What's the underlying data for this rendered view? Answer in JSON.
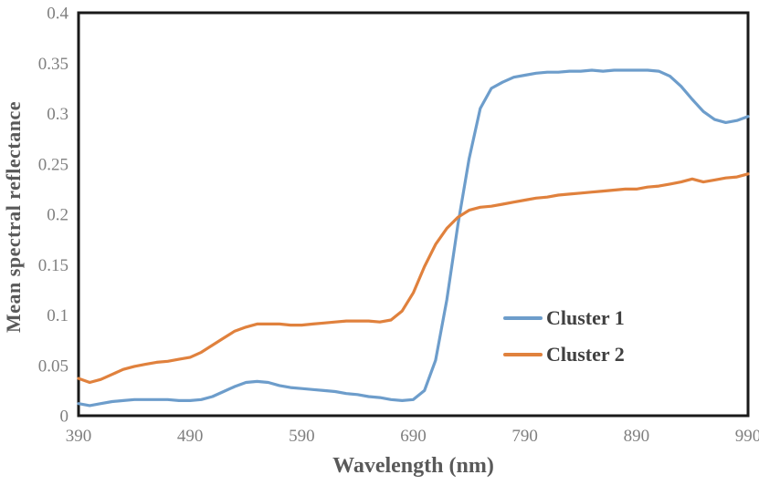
{
  "chart_data": {
    "type": "line",
    "title": "",
    "xlabel": "Wavelength (nm)",
    "ylabel": "Mean spectral reflectance",
    "xlim": [
      390,
      990
    ],
    "ylim": [
      0,
      0.4
    ],
    "grid": "off",
    "legend_position": "center-right-inside",
    "x_ticks": [
      390,
      490,
      590,
      690,
      790,
      890,
      990
    ],
    "y_ticks": [
      {
        "value": 0,
        "label": "0"
      },
      {
        "value": 0.05,
        "label": "0.05"
      },
      {
        "value": 0.1,
        "label": "0.1"
      },
      {
        "value": 0.15,
        "label": "0.15"
      },
      {
        "value": 0.2,
        "label": "0.2"
      },
      {
        "value": 0.25,
        "label": "0.25"
      },
      {
        "value": 0.3,
        "label": "0.3"
      },
      {
        "value": 0.35,
        "label": "0.35"
      },
      {
        "value": 0.4,
        "label": "0.4"
      }
    ],
    "x": [
      390,
      400,
      410,
      420,
      430,
      440,
      450,
      460,
      470,
      480,
      490,
      500,
      510,
      520,
      530,
      540,
      550,
      560,
      570,
      580,
      590,
      600,
      610,
      620,
      630,
      640,
      650,
      660,
      670,
      680,
      690,
      700,
      710,
      720,
      730,
      740,
      750,
      760,
      770,
      780,
      790,
      800,
      810,
      820,
      830,
      840,
      850,
      860,
      870,
      880,
      890,
      900,
      910,
      920,
      930,
      940,
      950,
      960,
      970,
      980,
      990
    ],
    "series": [
      {
        "name": "Cluster 1",
        "color": "#6D9DCB",
        "values": [
          0.012,
          0.01,
          0.012,
          0.014,
          0.015,
          0.016,
          0.016,
          0.016,
          0.016,
          0.015,
          0.015,
          0.016,
          0.019,
          0.024,
          0.029,
          0.033,
          0.034,
          0.033,
          0.03,
          0.028,
          0.027,
          0.026,
          0.025,
          0.024,
          0.022,
          0.021,
          0.019,
          0.018,
          0.016,
          0.015,
          0.016,
          0.025,
          0.055,
          0.115,
          0.19,
          0.255,
          0.305,
          0.325,
          0.331,
          0.336,
          0.338,
          0.34,
          0.341,
          0.341,
          0.342,
          0.342,
          0.343,
          0.342,
          0.343,
          0.343,
          0.343,
          0.343,
          0.342,
          0.337,
          0.327,
          0.314,
          0.302,
          0.294,
          0.291,
          0.293,
          0.297
        ]
      },
      {
        "name": "Cluster 2",
        "color": "#E0813D",
        "values": [
          0.037,
          0.033,
          0.036,
          0.041,
          0.046,
          0.049,
          0.051,
          0.053,
          0.054,
          0.056,
          0.058,
          0.063,
          0.07,
          0.077,
          0.084,
          0.088,
          0.091,
          0.091,
          0.091,
          0.09,
          0.09,
          0.091,
          0.092,
          0.093,
          0.094,
          0.094,
          0.094,
          0.093,
          0.095,
          0.104,
          0.122,
          0.148,
          0.17,
          0.186,
          0.197,
          0.204,
          0.207,
          0.208,
          0.21,
          0.212,
          0.214,
          0.216,
          0.217,
          0.219,
          0.22,
          0.221,
          0.222,
          0.223,
          0.224,
          0.225,
          0.225,
          0.227,
          0.228,
          0.23,
          0.232,
          0.235,
          0.232,
          0.234,
          0.236,
          0.237,
          0.24
        ]
      }
    ],
    "colors": {
      "plot_border": "#1a1a1a",
      "tick_label": "#7f7f7f",
      "axis_title": "#595959",
      "legend_text": "#404040",
      "background": "#ffffff"
    }
  }
}
